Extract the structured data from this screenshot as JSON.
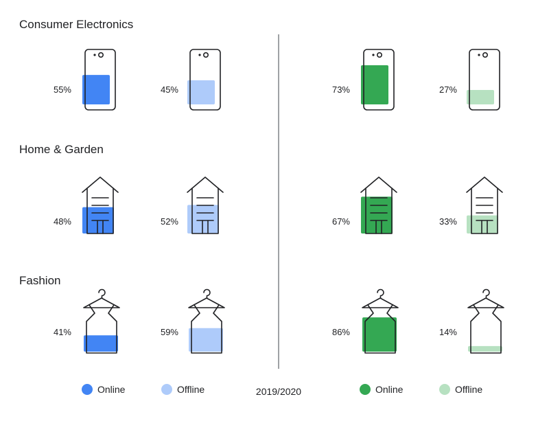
{
  "chart_data": {
    "type": "pictogram",
    "center_label": "2019/2020",
    "categories": [
      {
        "name": "Consumer Electronics",
        "icon": "phone-icon",
        "left": {
          "online": 55,
          "offline": 45,
          "online_label": "55%",
          "offline_label": "45%"
        },
        "right": {
          "online": 73,
          "offline": 27,
          "online_label": "73%",
          "offline_label": "27%"
        }
      },
      {
        "name": "Home & Garden",
        "icon": "house-icon",
        "left": {
          "online": 48,
          "offline": 52,
          "online_label": "48%",
          "offline_label": "52%"
        },
        "right": {
          "online": 67,
          "offline": 33,
          "online_label": "67%",
          "offline_label": "33%"
        }
      },
      {
        "name": "Fashion",
        "icon": "dress-on-hanger-icon",
        "left": {
          "online": 41,
          "offline": 59,
          "online_label": "41%",
          "offline_label": "59%"
        },
        "right": {
          "online": 86,
          "offline": 14,
          "online_label": "86%",
          "offline_label": "14%"
        }
      }
    ],
    "legend": [
      {
        "label": "Online",
        "color": "#4285f4"
      },
      {
        "label": "Offline",
        "color": "#aecbfa"
      },
      {
        "label": "Online",
        "color": "#34a853"
      },
      {
        "label": "Offline",
        "color": "#b7e1c1"
      }
    ],
    "colors": {
      "left_online": "#4285f4",
      "left_offline": "#aecbfa",
      "right_online": "#34a853",
      "right_offline": "#b7e1c1",
      "divider": "#5f6368"
    }
  }
}
